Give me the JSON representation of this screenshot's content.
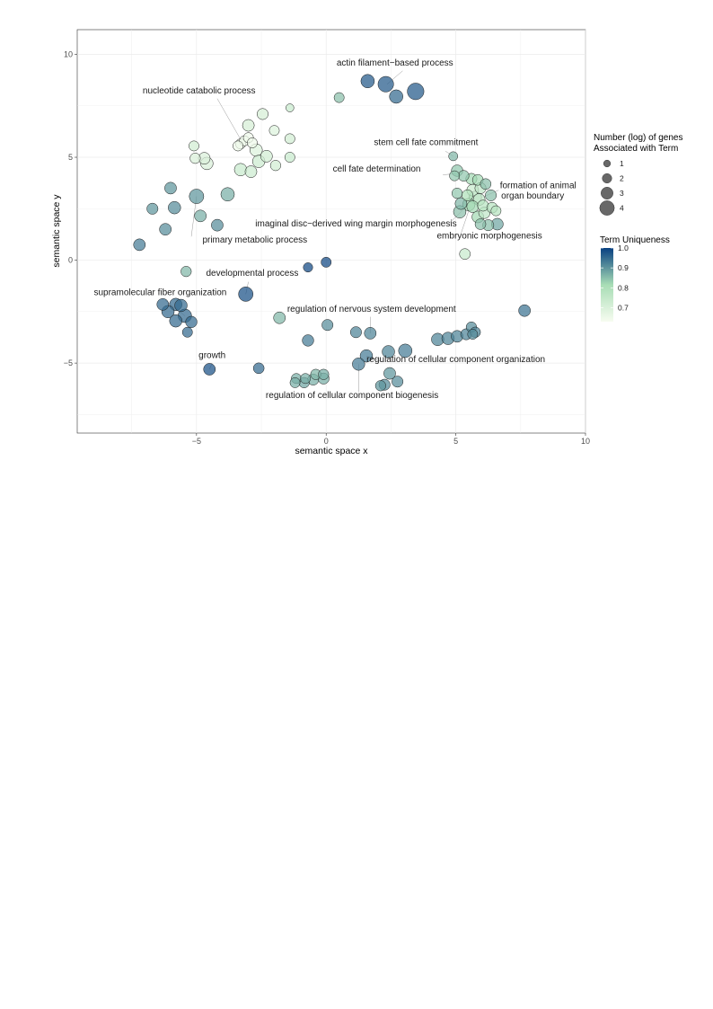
{
  "chart_data": {
    "type": "scatter",
    "title": "",
    "xlabel": "semantic space x",
    "ylabel": "semantic space y",
    "xlim": [
      -9.6,
      10
    ],
    "ylim": [
      -8.4,
      11.2
    ],
    "x_ticks": [
      -5,
      0,
      5,
      10
    ],
    "y_ticks": [
      -5,
      0,
      5,
      10
    ],
    "x_tick_labels": [
      "−5",
      "0",
      "5",
      "10"
    ],
    "y_tick_labels": [
      "−5",
      "0",
      "5",
      "10"
    ],
    "grid": true,
    "size_legend": {
      "title_lines": [
        "Number (log) of genes",
        "Associated with Term"
      ],
      "values": [
        1,
        2,
        3,
        4
      ],
      "labels": [
        "1",
        "2",
        "3",
        "4"
      ],
      "placement": "right"
    },
    "color_legend": {
      "title": "Term Uniqueness",
      "range": [
        0.63,
        1.0
      ],
      "ticks": [
        0.7,
        0.8,
        0.9,
        1.0
      ],
      "tick_labels": [
        "0.7",
        "0.8",
        "0.9",
        "1.0"
      ],
      "low_color": "#f7fcf0",
      "mid_color": "#a8ddb5",
      "high_color": "#084081",
      "placement": "right"
    },
    "points": [
      {
        "x": 1.6,
        "y": 8.7,
        "size": 2.6,
        "u": 0.97
      },
      {
        "x": 2.3,
        "y": 8.55,
        "size": 3.2,
        "u": 0.97
      },
      {
        "x": 2.7,
        "y": 7.95,
        "size": 2.6,
        "u": 0.95
      },
      {
        "x": 3.45,
        "y": 8.2,
        "size": 3.5,
        "u": 0.97
      },
      {
        "x": 0.5,
        "y": 7.9,
        "size": 1.6,
        "u": 0.85
      },
      {
        "x": -1.4,
        "y": 7.4,
        "size": 1.0,
        "u": 0.74
      },
      {
        "x": -3.0,
        "y": 6.55,
        "size": 2.1,
        "u": 0.71
      },
      {
        "x": -2.45,
        "y": 7.1,
        "size": 1.9,
        "u": 0.71
      },
      {
        "x": -2.0,
        "y": 6.3,
        "size": 1.6,
        "u": 0.69
      },
      {
        "x": -1.4,
        "y": 5.9,
        "size": 1.6,
        "u": 0.72
      },
      {
        "x": -3.3,
        "y": 5.65,
        "size": 1.6,
        "u": 0.65
      },
      {
        "x": -3.15,
        "y": 5.8,
        "size": 1.6,
        "u": 0.65
      },
      {
        "x": -3.0,
        "y": 5.95,
        "size": 1.6,
        "u": 0.65
      },
      {
        "x": -2.85,
        "y": 5.7,
        "size": 1.6,
        "u": 0.65
      },
      {
        "x": -3.4,
        "y": 5.55,
        "size": 1.6,
        "u": 0.65
      },
      {
        "x": -2.7,
        "y": 5.35,
        "size": 2.3,
        "u": 0.69
      },
      {
        "x": -2.3,
        "y": 5.05,
        "size": 2.1,
        "u": 0.72
      },
      {
        "x": -2.6,
        "y": 4.8,
        "size": 2.3,
        "u": 0.73
      },
      {
        "x": -1.95,
        "y": 4.6,
        "size": 1.7,
        "u": 0.72
      },
      {
        "x": -1.4,
        "y": 5.0,
        "size": 1.6,
        "u": 0.74
      },
      {
        "x": -3.3,
        "y": 4.4,
        "size": 2.3,
        "u": 0.74
      },
      {
        "x": -2.9,
        "y": 4.3,
        "size": 2.1,
        "u": 0.73
      },
      {
        "x": -5.1,
        "y": 5.55,
        "size": 1.6,
        "u": 0.72
      },
      {
        "x": -5.05,
        "y": 4.95,
        "size": 1.7,
        "u": 0.7
      },
      {
        "x": -4.7,
        "y": 4.95,
        "size": 2.1,
        "u": 0.7
      },
      {
        "x": -4.6,
        "y": 4.7,
        "size": 2.3,
        "u": 0.7
      },
      {
        "x": -6.0,
        "y": 3.5,
        "size": 2.1,
        "u": 0.9
      },
      {
        "x": -5.0,
        "y": 3.1,
        "size": 2.9,
        "u": 0.9
      },
      {
        "x": -3.8,
        "y": 3.2,
        "size": 2.6,
        "u": 0.87
      },
      {
        "x": -6.7,
        "y": 2.5,
        "size": 1.9,
        "u": 0.9
      },
      {
        "x": -5.85,
        "y": 2.55,
        "size": 2.3,
        "u": 0.91
      },
      {
        "x": -4.85,
        "y": 2.15,
        "size": 2.1,
        "u": 0.87
      },
      {
        "x": -4.2,
        "y": 1.7,
        "size": 2.1,
        "u": 0.91
      },
      {
        "x": -6.2,
        "y": 1.5,
        "size": 2.1,
        "u": 0.91
      },
      {
        "x": -7.2,
        "y": 0.75,
        "size": 2.1,
        "u": 0.93
      },
      {
        "x": -5.4,
        "y": -0.55,
        "size": 1.7,
        "u": 0.86
      },
      {
        "x": -0.7,
        "y": -0.35,
        "size": 1.4,
        "u": 0.99
      },
      {
        "x": 0.0,
        "y": -0.1,
        "size": 1.6,
        "u": 0.99
      },
      {
        "x": -3.1,
        "y": -1.65,
        "size": 2.9,
        "u": 0.98
      },
      {
        "x": -6.3,
        "y": -2.15,
        "size": 2.1,
        "u": 0.95
      },
      {
        "x": -5.8,
        "y": -2.15,
        "size": 2.3,
        "u": 0.95
      },
      {
        "x": -5.6,
        "y": -2.2,
        "size": 2.3,
        "u": 0.95
      },
      {
        "x": -6.1,
        "y": -2.5,
        "size": 2.3,
        "u": 0.95
      },
      {
        "x": -5.45,
        "y": -2.7,
        "size": 2.6,
        "u": 0.95
      },
      {
        "x": -5.8,
        "y": -2.95,
        "size": 2.3,
        "u": 0.95
      },
      {
        "x": -5.2,
        "y": -3.0,
        "size": 2.0,
        "u": 0.95
      },
      {
        "x": -5.35,
        "y": -3.5,
        "size": 1.6,
        "u": 0.95
      },
      {
        "x": -4.5,
        "y": -5.3,
        "size": 2.1,
        "u": 0.98
      },
      {
        "x": -2.6,
        "y": -5.25,
        "size": 1.8,
        "u": 0.95
      },
      {
        "x": -1.8,
        "y": -2.8,
        "size": 2.1,
        "u": 0.86
      },
      {
        "x": 0.05,
        "y": -3.15,
        "size": 1.9,
        "u": 0.91
      },
      {
        "x": -0.7,
        "y": -3.9,
        "size": 2.0,
        "u": 0.93
      },
      {
        "x": 1.15,
        "y": -3.5,
        "size": 1.9,
        "u": 0.92
      },
      {
        "x": 1.7,
        "y": -3.55,
        "size": 2.1,
        "u": 0.92
      },
      {
        "x": 2.4,
        "y": -4.45,
        "size": 2.3,
        "u": 0.92
      },
      {
        "x": 1.55,
        "y": -4.65,
        "size": 2.3,
        "u": 0.93
      },
      {
        "x": 1.25,
        "y": -5.05,
        "size": 2.3,
        "u": 0.93
      },
      {
        "x": 3.05,
        "y": -4.4,
        "size": 2.6,
        "u": 0.93
      },
      {
        "x": 2.45,
        "y": -5.5,
        "size": 2.1,
        "u": 0.9
      },
      {
        "x": 2.75,
        "y": -5.9,
        "size": 1.9,
        "u": 0.91
      },
      {
        "x": 2.25,
        "y": -6.05,
        "size": 1.9,
        "u": 0.91
      },
      {
        "x": 2.1,
        "y": -6.1,
        "size": 1.7,
        "u": 0.9
      },
      {
        "x": -1.15,
        "y": -5.75,
        "size": 1.6,
        "u": 0.87
      },
      {
        "x": -1.2,
        "y": -5.95,
        "size": 1.6,
        "u": 0.87
      },
      {
        "x": -0.85,
        "y": -5.95,
        "size": 1.7,
        "u": 0.88
      },
      {
        "x": -0.8,
        "y": -5.75,
        "size": 1.6,
        "u": 0.87
      },
      {
        "x": -0.5,
        "y": -5.8,
        "size": 1.9,
        "u": 0.87
      },
      {
        "x": -0.4,
        "y": -5.55,
        "size": 1.7,
        "u": 0.86
      },
      {
        "x": -0.1,
        "y": -5.75,
        "size": 1.9,
        "u": 0.87
      },
      {
        "x": -0.1,
        "y": -5.55,
        "size": 1.7,
        "u": 0.87
      },
      {
        "x": 4.3,
        "y": -3.85,
        "size": 2.3,
        "u": 0.92
      },
      {
        "x": 4.7,
        "y": -3.8,
        "size": 2.3,
        "u": 0.92
      },
      {
        "x": 5.05,
        "y": -3.7,
        "size": 2.1,
        "u": 0.92
      },
      {
        "x": 5.4,
        "y": -3.6,
        "size": 1.9,
        "u": 0.92
      },
      {
        "x": 5.6,
        "y": -3.25,
        "size": 1.7,
        "u": 0.91
      },
      {
        "x": 5.75,
        "y": -3.5,
        "size": 1.7,
        "u": 0.92
      },
      {
        "x": 5.65,
        "y": -3.6,
        "size": 1.6,
        "u": 0.91
      },
      {
        "x": 7.65,
        "y": -2.45,
        "size": 2.1,
        "u": 0.94
      },
      {
        "x": 4.9,
        "y": 5.05,
        "size": 1.3,
        "u": 0.86
      },
      {
        "x": 5.05,
        "y": 4.35,
        "size": 2.0,
        "u": 0.84
      },
      {
        "x": 4.95,
        "y": 4.1,
        "size": 1.6,
        "u": 0.84
      },
      {
        "x": 5.3,
        "y": 4.1,
        "size": 1.8,
        "u": 0.84
      },
      {
        "x": 5.6,
        "y": 3.95,
        "size": 1.9,
        "u": 0.82
      },
      {
        "x": 5.85,
        "y": 3.9,
        "size": 1.8,
        "u": 0.82
      },
      {
        "x": 6.15,
        "y": 3.7,
        "size": 1.8,
        "u": 0.85
      },
      {
        "x": 5.95,
        "y": 3.5,
        "size": 1.9,
        "u": 0.76
      },
      {
        "x": 5.65,
        "y": 3.4,
        "size": 2.1,
        "u": 0.74
      },
      {
        "x": 5.05,
        "y": 3.25,
        "size": 1.7,
        "u": 0.84
      },
      {
        "x": 5.45,
        "y": 3.15,
        "size": 1.9,
        "u": 0.8
      },
      {
        "x": 6.35,
        "y": 3.15,
        "size": 1.9,
        "u": 0.85
      },
      {
        "x": 5.75,
        "y": 3.05,
        "size": 2.3,
        "u": 0.76
      },
      {
        "x": 5.9,
        "y": 2.95,
        "size": 2.1,
        "u": 0.76
      },
      {
        "x": 5.2,
        "y": 2.75,
        "size": 2.1,
        "u": 0.86
      },
      {
        "x": 5.5,
        "y": 2.7,
        "size": 2.3,
        "u": 0.82
      },
      {
        "x": 5.65,
        "y": 2.6,
        "size": 2.1,
        "u": 0.82
      },
      {
        "x": 6.05,
        "y": 2.65,
        "size": 1.9,
        "u": 0.78
      },
      {
        "x": 6.4,
        "y": 2.55,
        "size": 1.8,
        "u": 0.78
      },
      {
        "x": 6.55,
        "y": 2.4,
        "size": 1.6,
        "u": 0.78
      },
      {
        "x": 6.1,
        "y": 2.3,
        "size": 2.0,
        "u": 0.76
      },
      {
        "x": 5.15,
        "y": 2.35,
        "size": 2.3,
        "u": 0.85
      },
      {
        "x": 5.85,
        "y": 2.1,
        "size": 2.1,
        "u": 0.82
      },
      {
        "x": 5.95,
        "y": 1.75,
        "size": 1.8,
        "u": 0.85
      },
      {
        "x": 6.25,
        "y": 1.7,
        "size": 1.9,
        "u": 0.85
      },
      {
        "x": 6.6,
        "y": 1.75,
        "size": 2.1,
        "u": 0.88
      },
      {
        "x": 5.35,
        "y": 0.3,
        "size": 1.8,
        "u": 0.74
      }
    ],
    "annotations": [
      {
        "text": "actin filament−based process",
        "pos": [
          2.65,
          9.45
        ],
        "anchor": "middle",
        "leader": [
          [
            2.95,
            9.2
          ],
          [
            2.35,
            8.55
          ]
        ]
      },
      {
        "text": "nucleotide catabolic process",
        "pos": [
          -4.9,
          8.1
        ],
        "anchor": "middle",
        "leader": [
          [
            -4.2,
            7.85
          ],
          [
            -3.2,
            5.65
          ]
        ]
      },
      {
        "text": "stem cell fate commitment",
        "pos": [
          3.85,
          5.6
        ],
        "anchor": "middle",
        "leader": [
          [
            4.6,
            5.3
          ],
          [
            4.9,
            5.05
          ]
        ]
      },
      {
        "text": "cell fate determination",
        "pos": [
          1.95,
          4.3
        ],
        "anchor": "middle",
        "leader": [
          [
            4.5,
            4.15
          ],
          [
            5.0,
            4.2
          ]
        ]
      },
      {
        "text": "formation of animal",
        "pos": [
          6.7,
          3.5
        ],
        "anchor": "start",
        "leader": null
      },
      {
        "text": "organ boundary",
        "pos": [
          6.75,
          3.0
        ],
        "anchor": "start",
        "leader": [
          [
            6.65,
            3.4
          ],
          [
            6.1,
            3.1
          ]
        ]
      },
      {
        "text": "imaginal disc−derived wing margin morphogenesis",
        "pos": [
          1.15,
          1.65
        ],
        "anchor": "middle",
        "leader": [
          [
            4.7,
            1.75
          ],
          [
            5.5,
            2.7
          ]
        ]
      },
      {
        "text": "embryonic morphogenesis",
        "pos": [
          6.3,
          1.05
        ],
        "anchor": "middle",
        "leader": [
          [
            5.2,
            1.3
          ],
          [
            5.55,
            2.6
          ]
        ]
      },
      {
        "text": "primary metabolic process",
        "pos": [
          -2.75,
          0.85
        ],
        "anchor": "middle",
        "leader": [
          [
            -5.2,
            1.15
          ],
          [
            -5.0,
            3.1
          ]
        ]
      },
      {
        "text": "developmental process",
        "pos": [
          -2.85,
          -0.75
        ],
        "anchor": "middle",
        "leader": [
          [
            -3.0,
            -1.05
          ],
          [
            -3.1,
            -1.65
          ]
        ]
      },
      {
        "text": "supramolecular fiber organization",
        "pos": [
          -6.4,
          -1.7
        ],
        "anchor": "middle",
        "leader": [
          [
            -6.2,
            -1.95
          ],
          [
            -5.45,
            -2.7
          ]
        ]
      },
      {
        "text": "regulation of nervous system development",
        "pos": [
          1.75,
          -2.5
        ],
        "anchor": "middle",
        "leader": [
          [
            1.7,
            -2.75
          ],
          [
            1.7,
            -3.55
          ]
        ]
      },
      {
        "text": "growth",
        "pos": [
          -4.4,
          -4.75
        ],
        "anchor": "middle",
        "leader": [
          [
            -4.4,
            -5.0
          ],
          [
            -4.5,
            -5.3
          ]
        ]
      },
      {
        "text": "regulation of cellular component organization",
        "pos": [
          5.0,
          -4.95
        ],
        "anchor": "middle",
        "leader": [
          [
            2.2,
            -4.95
          ],
          [
            1.55,
            -4.65
          ]
        ]
      },
      {
        "text": "regulation of cellular component biogenesis",
        "pos": [
          1.0,
          -6.7
        ],
        "anchor": "middle",
        "leader": [
          [
            1.25,
            -6.4
          ],
          [
            1.25,
            -5.05
          ]
        ]
      }
    ]
  }
}
